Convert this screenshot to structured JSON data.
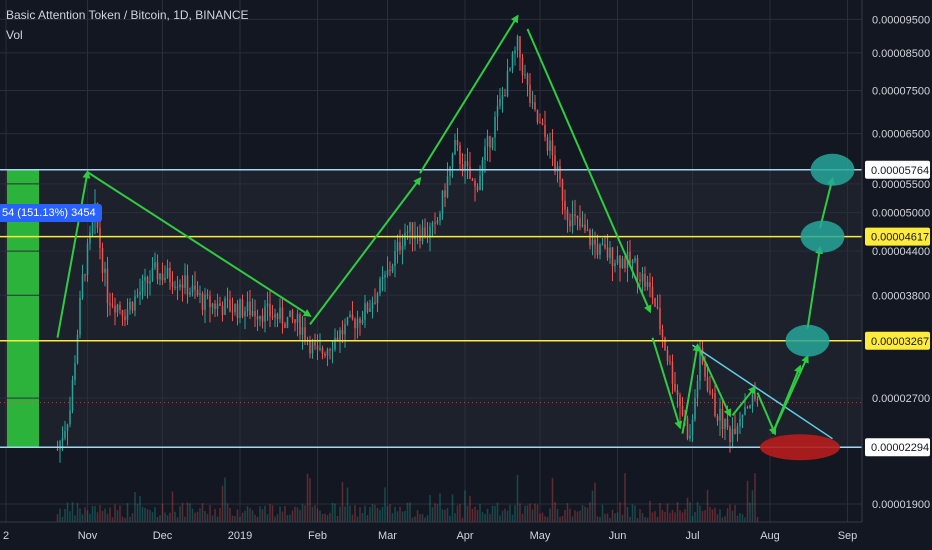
{
  "header": {
    "title": "Basic Attention Token / Bitcoin, 1D, BINANCE",
    "volume_label": "Vol"
  },
  "measurement": {
    "label": "54 (151.13%) 3454"
  },
  "chart_data": {
    "type": "candlestick",
    "title": "Basic Attention Token / Bitcoin, 1D, BINANCE",
    "x_axis": {
      "ticks": [
        "2",
        "Nov",
        "Dec",
        "2019",
        "Feb",
        "Mar",
        "Apr",
        "May",
        "Jun",
        "Jul",
        "Aug",
        "Sep"
      ]
    },
    "y_axis": {
      "scale": "log",
      "range": [
        1.85e-05,
        9.8e-06
      ],
      "ticks": [
        "0.00009500",
        "0.00008500",
        "0.00007500",
        "0.00006500",
        "0.00005500",
        "0.00005000",
        "0.00004400",
        "0.00003800",
        "0.00002700",
        "0.00001900"
      ]
    },
    "price_path": [
      {
        "date": "Oct 20",
        "price": 2.28e-05
      },
      {
        "date": "Oct 25",
        "price": 2.6e-05
      },
      {
        "date": "Oct 30",
        "price": 4e-05
      },
      {
        "date": "Nov 4",
        "price": 5e-05
      },
      {
        "date": "Nov 9",
        "price": 3.8e-05
      },
      {
        "date": "Nov 16",
        "price": 3.6e-05
      },
      {
        "date": "Nov 28",
        "price": 4.1e-05
      },
      {
        "date": "Dec 8",
        "price": 4e-05
      },
      {
        "date": "Dec 18",
        "price": 3.7e-05
      },
      {
        "date": "Dec 28",
        "price": 3.65e-05
      },
      {
        "date": "Jan 10",
        "price": 3.6e-05
      },
      {
        "date": "Jan 25",
        "price": 3.45e-05
      },
      {
        "date": "Feb 1",
        "price": 3.1e-05
      },
      {
        "date": "Feb 8",
        "price": 3.3e-05
      },
      {
        "date": "Feb 20",
        "price": 3.6e-05
      },
      {
        "date": "Feb 28",
        "price": 4e-05
      },
      {
        "date": "Mar 8",
        "price": 4.7e-05
      },
      {
        "date": "Mar 20",
        "price": 4.7e-05
      },
      {
        "date": "Mar 28",
        "price": 6.2e-05
      },
      {
        "date": "Apr 5",
        "price": 5.4e-05
      },
      {
        "date": "Apr 12",
        "price": 6.6e-05
      },
      {
        "date": "Apr 22",
        "price": 8.7e-05
      },
      {
        "date": "Apr 28",
        "price": 7e-05
      },
      {
        "date": "May 5",
        "price": 6.2e-05
      },
      {
        "date": "May 12",
        "price": 5e-05
      },
      {
        "date": "May 25",
        "price": 4.4e-05
      },
      {
        "date": "Jun 8",
        "price": 4.2e-05
      },
      {
        "date": "Jun 15",
        "price": 3.8e-05
      },
      {
        "date": "Jun 22",
        "price": 3e-05
      },
      {
        "date": "Jun 30",
        "price": 2.35e-05
      },
      {
        "date": "Jul 4",
        "price": 3.1e-05
      },
      {
        "date": "Jul 10",
        "price": 2.6e-05
      },
      {
        "date": "Jul 16",
        "price": 2.4e-05
      },
      {
        "date": "Jul 22",
        "price": 2.65e-05
      },
      {
        "date": "Jul 27",
        "price": 2.7e-05
      }
    ],
    "horizontal_levels": [
      {
        "value": 5.764e-05,
        "label": "0.00005764",
        "color": "#a5d8f0",
        "label_bg": "#ffffff",
        "label_fg": "#131722"
      },
      {
        "value": 4.617e-05,
        "label": "0.00004617",
        "color": "#ffeb3b",
        "label_bg": "#ffeb3b",
        "label_fg": "#131722"
      },
      {
        "value": 3.267e-05,
        "label": "0.00003267",
        "color": "#ffeb3b",
        "label_bg": "#ffeb3b",
        "label_fg": "#131722"
      },
      {
        "value": 2.294e-05,
        "label": "0.00002294",
        "color": "#a5d8f0",
        "label_bg": "#ffffff",
        "label_fg": "#131722"
      }
    ],
    "current_price_level": 2.66e-05,
    "colors": {
      "up": "#26a69a",
      "down": "#ef5350",
      "arrows": "#2ecc40",
      "target_circles": "#26a69a",
      "red_ellipse": "#b71c1c",
      "trendline": "#5ecfe8",
      "highlight": "#2ecc40"
    },
    "grid": true,
    "legend": "none"
  }
}
